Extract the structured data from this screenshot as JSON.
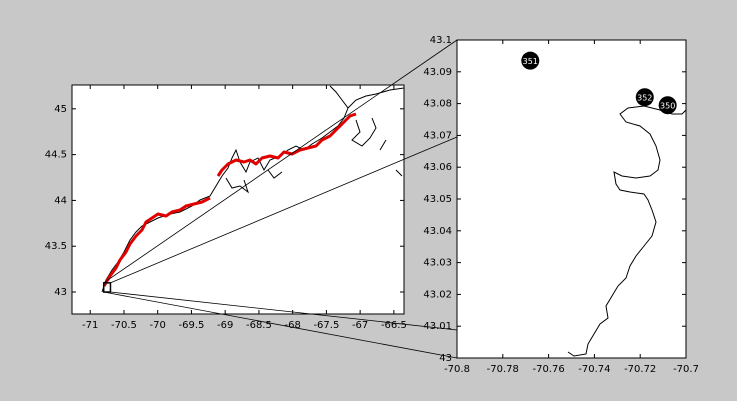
{
  "chart_data": [
    {
      "type": "map",
      "xlim": [
        -71.27,
        -66.35
      ],
      "ylim": [
        42.76,
        45.26
      ],
      "xticks": [
        -71,
        -70.5,
        -70,
        -69.5,
        -69,
        -68.5,
        -68,
        -67.5,
        -67,
        -66.5
      ],
      "yticks": [
        43,
        43.5,
        44,
        44.5,
        45
      ]
    },
    {
      "type": "map",
      "xlim": [
        -70.8,
        -70.7
      ],
      "ylim": [
        43,
        43.1
      ],
      "xticks": [
        -70.8,
        -70.78,
        -70.76,
        -70.74,
        -70.72,
        -70.7
      ],
      "yticks": [
        43,
        43.01,
        43.02,
        43.03,
        43.04,
        43.05,
        43.06,
        43.07,
        43.08,
        43.09,
        43.1
      ],
      "points": {
        "x": [
          -70.768,
          -70.718,
          -70.708
        ],
        "y": [
          43.0935,
          43.082,
          43.0795
        ],
        "labels": [
          "351",
          "352",
          "350"
        ]
      }
    }
  ]
}
